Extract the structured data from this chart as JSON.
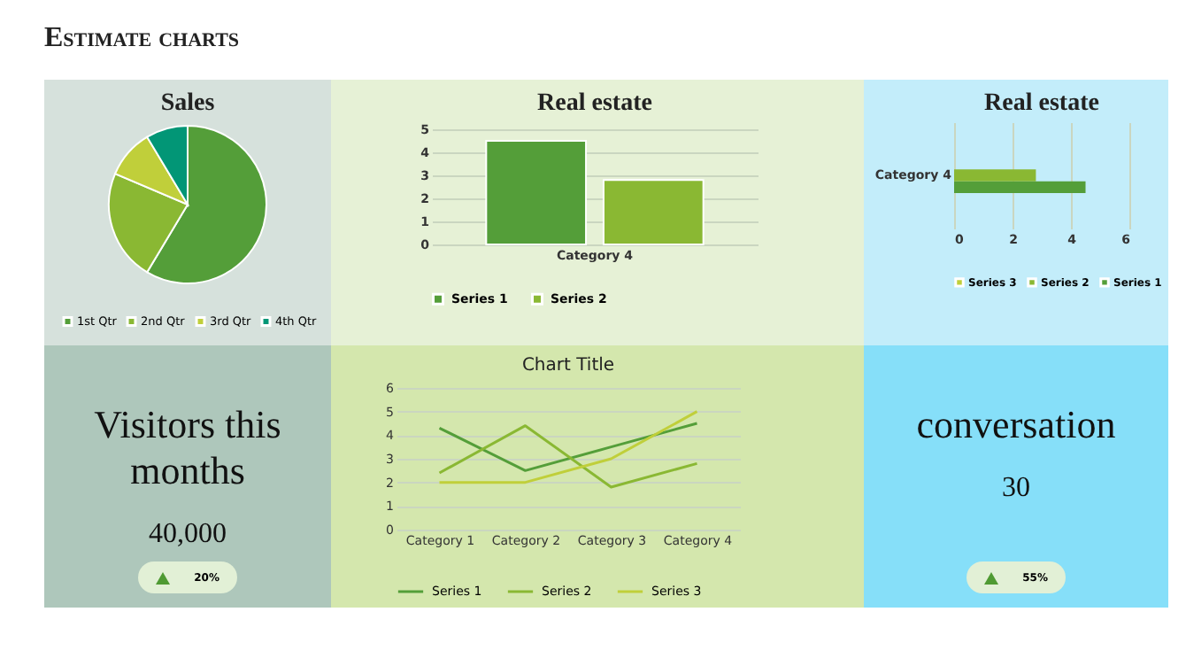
{
  "chart_data": [
    {
      "type": "other",
      "title": "Estimate charts"
    },
    {
      "type": "pie",
      "title": "Sales",
      "categories": [
        "1st Qtr",
        "2nd Qtr",
        "3rd Qtr",
        "4th Qtr"
      ],
      "values": [
        58.6,
        22.8,
        10,
        8.6
      ],
      "colors": [
        "#549e39",
        "#8ab833",
        "#c0cf3a",
        "#029676"
      ],
      "legend": "bottom"
    },
    {
      "type": "bar",
      "title": "Real estate",
      "categories": [
        "Category 4"
      ],
      "series": [
        {
          "name": "Series 1",
          "color": "#549e39",
          "values": [
            4.5
          ]
        },
        {
          "name": "Series 2",
          "color": "#8ab833",
          "values": [
            2.8
          ]
        }
      ],
      "ylim": [
        0,
        5
      ],
      "yticks": [
        0,
        1,
        2,
        3,
        4,
        5
      ],
      "grid": "y",
      "legend": "bottom"
    },
    {
      "type": "bar",
      "orientation": "horizontal",
      "title": "Real estate",
      "categories": [
        "Category 4"
      ],
      "series": [
        {
          "name": "Series 1",
          "color": "#549e39",
          "values": [
            4.5
          ]
        },
        {
          "name": "Series 2",
          "color": "#8ab833",
          "values": [
            2.8
          ]
        },
        {
          "name": "Series 3",
          "color": "#c0cf3a",
          "values": [
            null
          ]
        }
      ],
      "xlim": [
        0,
        6
      ],
      "xticks": [
        0,
        2,
        4,
        6
      ],
      "grid": "x",
      "legend": "bottom"
    },
    {
      "type": "other",
      "title": "Visitors this months",
      "annotations": [
        "40,000",
        "20%"
      ]
    },
    {
      "type": "line",
      "title": "Chart Title",
      "categories": [
        "Category 1",
        "Category 2",
        "Category 3",
        "Category 4"
      ],
      "series": [
        {
          "name": "Series 1",
          "color": "#549e39",
          "values": [
            4.3,
            2.5,
            3.5,
            4.5
          ]
        },
        {
          "name": "Series 2",
          "color": "#8ab833",
          "values": [
            2.4,
            4.4,
            1.8,
            2.8
          ]
        },
        {
          "name": "Series 3",
          "color": "#c0cf3a",
          "values": [
            2,
            2,
            3,
            5
          ]
        }
      ],
      "ylim": [
        0,
        6
      ],
      "yticks": [
        0,
        1,
        2,
        3,
        4,
        5,
        6
      ],
      "grid": "y",
      "legend": "bottom"
    },
    {
      "type": "other",
      "title": "conversation",
      "annotations": [
        "30",
        "55%"
      ]
    }
  ]
}
